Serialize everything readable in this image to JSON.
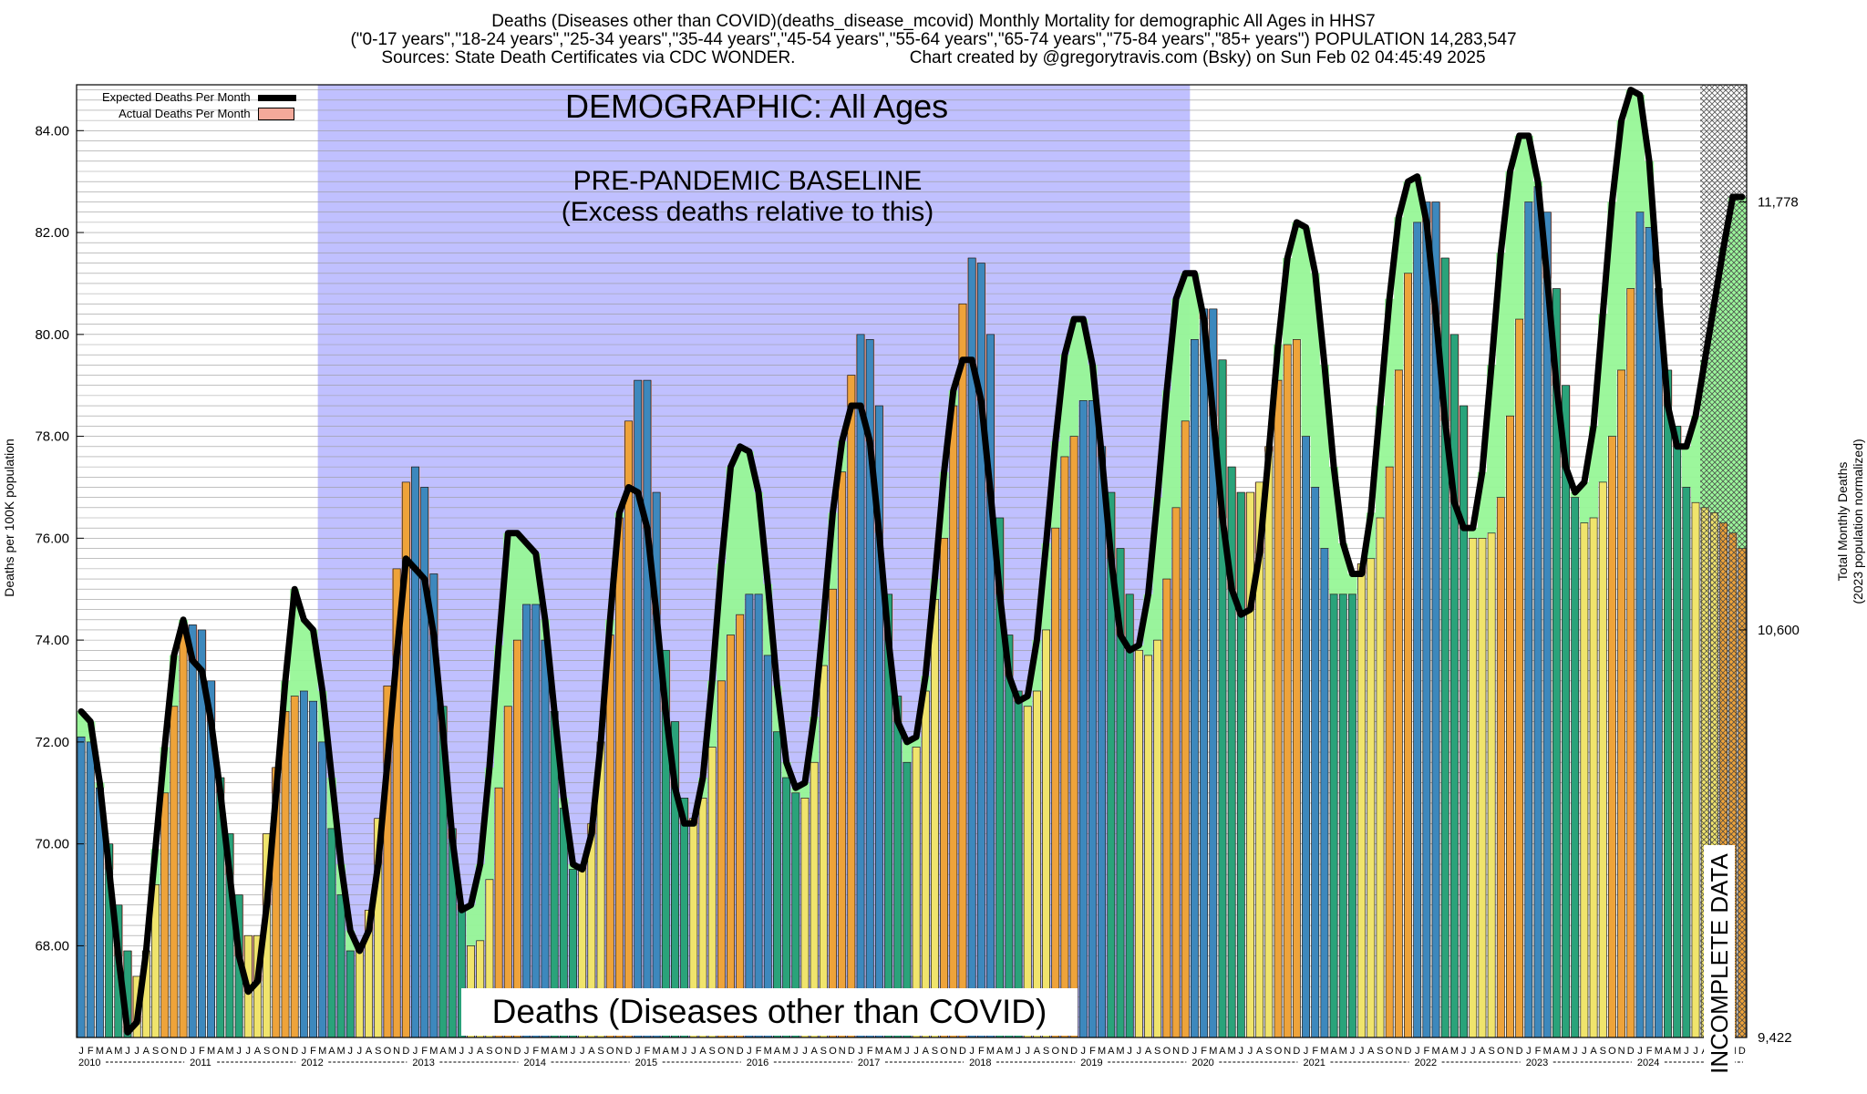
{
  "header": {
    "title": "Deaths (Diseases other than COVID)(deaths_disease_mcovid) Monthly Mortality for demographic All Ages in HHS7",
    "groups": "(\"0-17 years\",\"18-24 years\",\"25-34 years\",\"35-44 years\",\"45-54 years\",\"55-64 years\",\"65-74 years\",\"75-84 years\",\"85+ years\") POPULATION 14,283,547",
    "sources": "Sources: State Death Certificates via CDC WONDER.",
    "credit": "Chart created by @gregorytravis.com (Bsky) on Sun Feb 02 04:45:49 2025"
  },
  "legend": {
    "expected": "Expected Deaths Per Month",
    "actual": "Actual Deaths Per Month"
  },
  "annotations": {
    "demographic": "DEMOGRAPHIC: All Ages",
    "baseline_line1": "PRE-PANDEMIC BASELINE",
    "baseline_line2": "(Excess deaths relative to this)",
    "bottom": "Deaths (Diseases other than COVID)",
    "incomplete": "INCOMPLETE DATA"
  },
  "axes": {
    "ylabel_left": "Deaths per 100K population",
    "ylabel_right_line1": "Total Monthly Deaths",
    "ylabel_right_line2": "(2023 population normalized)"
  },
  "colors": {
    "baseline_region": "#c0c0ff",
    "winter_bar": "#3d88bd",
    "spring_bar": "#2aa37a",
    "summer_bar": "#f0e46c",
    "fall_bar": "#eea33a",
    "excess_fill": "#f4a99a",
    "deficit_fill": "#97f797",
    "expected_line": "#000000"
  },
  "chart_data": {
    "type": "bar",
    "start": "2010-01",
    "months": 180,
    "ylim": [
      66.2,
      84.9
    ],
    "yticks": [
      68,
      70,
      72,
      74,
      76,
      78,
      80,
      82,
      84
    ],
    "ytick_labels": [
      "68.00",
      "70.00",
      "72.00",
      "74.00",
      "76.00",
      "78.00",
      "80.00",
      "82.00",
      "84.00"
    ],
    "right_axis_ticks": [
      {
        "value": 66.0,
        "label": "9,422"
      },
      {
        "value": 74.2,
        "label": "10,600"
      },
      {
        "value": 82.6,
        "label": "11,778"
      }
    ],
    "month_letters": [
      "J",
      "F",
      "M",
      "A",
      "M",
      "J",
      "J",
      "A",
      "S",
      "O",
      "N",
      "D"
    ],
    "year_labels": [
      "2010",
      "2011",
      "2012",
      "2013",
      "2014",
      "2015",
      "2016",
      "2017",
      "2018",
      "2019",
      "2020",
      "2021",
      "2022",
      "2023",
      "2024"
    ],
    "baseline_period": [
      "2012-03",
      "2019-12"
    ],
    "incomplete_period": [
      "2024-08",
      "2024-12"
    ],
    "grid": true,
    "legend_position": "top-left",
    "series": [
      {
        "name": "Expected Deaths Per Month",
        "values": [
          72.6,
          72.4,
          71.2,
          69.5,
          67.8,
          66.3,
          66.5,
          67.9,
          69.9,
          71.9,
          73.7,
          74.4,
          73.6,
          73.4,
          72.4,
          71.0,
          69.4,
          67.8,
          67.1,
          67.3,
          68.8,
          71.0,
          73.2,
          75.0,
          74.4,
          74.2,
          73.0,
          71.3,
          69.6,
          68.3,
          67.9,
          68.3,
          69.6,
          71.6,
          73.7,
          75.6,
          75.4,
          75.2,
          74.1,
          72.2,
          70.1,
          68.7,
          68.8,
          69.6,
          71.5,
          73.9,
          76.1,
          76.1,
          75.9,
          75.7,
          74.4,
          72.6,
          70.9,
          69.6,
          69.5,
          70.2,
          72.0,
          74.4,
          76.5,
          77.0,
          76.9,
          76.2,
          74.5,
          72.6,
          71.1,
          70.4,
          70.4,
          71.3,
          73.2,
          75.5,
          77.4,
          77.8,
          77.7,
          76.9,
          75.1,
          73.1,
          71.6,
          71.1,
          71.2,
          72.5,
          74.4,
          76.5,
          77.9,
          78.6,
          78.6,
          77.9,
          76.1,
          74.0,
          72.4,
          72.0,
          72.1,
          73.3,
          75.2,
          77.3,
          78.9,
          79.5,
          79.5,
          78.7,
          76.9,
          74.9,
          73.3,
          72.8,
          72.9,
          74.0,
          75.9,
          77.9,
          79.6,
          80.3,
          80.3,
          79.4,
          77.6,
          75.6,
          74.1,
          73.8,
          73.9,
          74.9,
          76.8,
          78.9,
          80.7,
          81.2,
          81.2,
          80.3,
          78.4,
          76.4,
          75.0,
          74.5,
          74.6,
          75.7,
          77.7,
          79.8,
          81.5,
          82.2,
          82.1,
          81.2,
          79.4,
          77.4,
          75.9,
          75.3,
          75.3,
          76.5,
          78.6,
          80.7,
          82.3,
          83.0,
          83.1,
          82.2,
          80.4,
          78.3,
          76.7,
          76.2,
          76.2,
          77.3,
          79.4,
          81.6,
          83.2,
          83.9,
          83.9,
          83.0,
          81.1,
          79.0,
          77.4,
          76.9,
          77.1,
          78.2,
          80.4,
          82.6,
          84.2,
          84.8,
          84.7,
          83.4,
          80.9,
          78.6,
          77.8,
          77.8,
          78.4,
          79.5,
          80.6,
          81.7,
          82.7,
          82.7
        ]
      },
      {
        "name": "Actual Deaths Per Month",
        "values": [
          72.1,
          72.0,
          71.1,
          70.0,
          68.8,
          67.9,
          67.4,
          67.9,
          69.2,
          71.0,
          72.7,
          74.3,
          74.3,
          74.2,
          73.2,
          71.3,
          70.2,
          69.0,
          68.2,
          68.2,
          70.2,
          71.5,
          72.6,
          72.9,
          73.0,
          72.8,
          72.0,
          70.3,
          69.0,
          67.9,
          68.0,
          68.7,
          70.5,
          73.1,
          75.4,
          77.1,
          77.4,
          77.0,
          75.3,
          72.7,
          70.3,
          68.8,
          68.0,
          68.1,
          69.3,
          71.1,
          72.7,
          74.0,
          74.7,
          74.7,
          74.0,
          72.6,
          70.7,
          69.5,
          69.6,
          70.4,
          72.0,
          74.1,
          76.4,
          78.3,
          79.1,
          79.1,
          76.9,
          73.8,
          72.4,
          70.9,
          70.5,
          70.9,
          71.9,
          73.2,
          74.1,
          74.5,
          74.9,
          74.9,
          73.7,
          72.2,
          71.3,
          71.0,
          70.9,
          71.6,
          73.5,
          75.0,
          77.3,
          79.2,
          80.0,
          79.9,
          78.6,
          74.9,
          72.9,
          71.6,
          71.9,
          73.0,
          74.8,
          76.0,
          78.6,
          80.6,
          81.5,
          81.4,
          80.0,
          76.4,
          74.1,
          73.0,
          72.7,
          73.0,
          74.2,
          76.2,
          77.6,
          78.0,
          78.7,
          78.7,
          77.8,
          76.9,
          75.8,
          74.9,
          73.8,
          73.7,
          74.0,
          75.2,
          76.6,
          78.3,
          79.9,
          80.5,
          80.5,
          79.5,
          77.4,
          76.9,
          76.9,
          77.1,
          77.8,
          79.1,
          79.8,
          79.9,
          78.0,
          77.0,
          75.8,
          74.9,
          74.9,
          74.9,
          75.5,
          75.6,
          76.4,
          77.4,
          79.3,
          81.2,
          82.2,
          82.6,
          82.6,
          81.5,
          80.0,
          78.6,
          76.0,
          76.0,
          76.1,
          76.8,
          78.4,
          80.3,
          82.6,
          82.9,
          82.4,
          80.9,
          79.0,
          76.8,
          76.3,
          76.4,
          77.1,
          78.0,
          79.3,
          80.9,
          82.4,
          82.1,
          80.9,
          79.3,
          78.2,
          77.0,
          76.7,
          76.6,
          76.5,
          76.3,
          76.1,
          75.8
        ]
      }
    ]
  }
}
